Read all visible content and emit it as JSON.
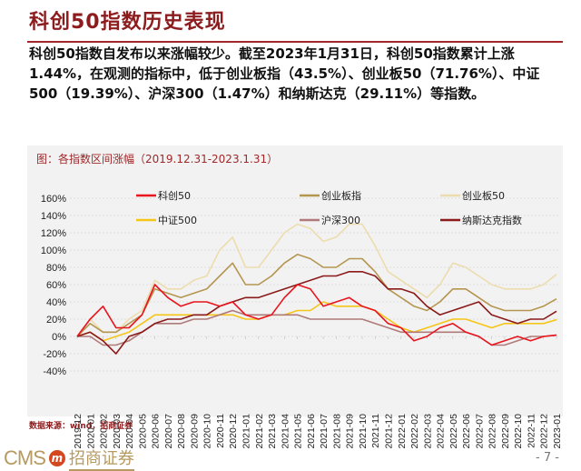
{
  "header": {
    "title": "科创50指数历史表现"
  },
  "body_text": "科创50指数自发布以来涨幅较少。截至2023年1月31日，科创50指数累计上涨1.44%，在观测的指标中，低于创业板指（43.5%）、创业板50（71.76%）、中证500（19.39%）、沪深300（1.47%）和纳斯达克（29.11%）等指数。",
  "chart_data": {
    "type": "line",
    "title": "图：各指数区间涨幅（2019.12.31-2023.1.31）",
    "x": [
      "2019-12",
      "2020-01",
      "2020-02",
      "2020-03",
      "2020-04",
      "2020-05",
      "2020-06",
      "2020-07",
      "2020-08",
      "2020-09",
      "2020-10",
      "2020-11",
      "2020-12",
      "2021-01",
      "2021-02",
      "2021-03",
      "2021-04",
      "2021-05",
      "2021-06",
      "2021-07",
      "2021-08",
      "2021-09",
      "2021-10",
      "2021-11",
      "2021-12",
      "2022-01",
      "2022-02",
      "2022-03",
      "2022-04",
      "2022-05",
      "2022-06",
      "2022-07",
      "2022-08",
      "2022-09",
      "2022-10",
      "2022-11",
      "2022-12",
      "2023-01"
    ],
    "yticks": [
      "160%",
      "140%",
      "120%",
      "100%",
      "80%",
      "60%",
      "40%",
      "20%",
      "0%",
      "-20%",
      "-40%"
    ],
    "ylim": [
      -40,
      160
    ],
    "grid": true,
    "legend_placement": "top",
    "series": [
      {
        "name": "科创50",
        "color": "#e8141e",
        "values": [
          0,
          20,
          35,
          10,
          10,
          25,
          60,
          45,
          35,
          40,
          40,
          35,
          40,
          25,
          20,
          25,
          45,
          60,
          55,
          35,
          40,
          45,
          35,
          30,
          15,
          10,
          -5,
          0,
          10,
          15,
          5,
          0,
          -10,
          -5,
          0,
          -5,
          0,
          1.44
        ]
      },
      {
        "name": "创业板指",
        "color": "#b49650",
        "values": [
          0,
          15,
          5,
          5,
          15,
          25,
          55,
          50,
          45,
          50,
          55,
          70,
          85,
          60,
          60,
          70,
          85,
          95,
          90,
          80,
          80,
          90,
          90,
          75,
          55,
          45,
          35,
          30,
          40,
          55,
          55,
          45,
          35,
          30,
          30,
          30,
          35,
          43.5
        ]
      },
      {
        "name": "创业板50",
        "color": "#ecdcae",
        "values": [
          0,
          20,
          5,
          5,
          20,
          30,
          65,
          55,
          55,
          65,
          70,
          100,
          115,
          80,
          80,
          100,
          120,
          130,
          125,
          110,
          115,
          130,
          130,
          105,
          75,
          65,
          55,
          45,
          60,
          85,
          80,
          70,
          60,
          55,
          55,
          55,
          60,
          71.76
        ]
      },
      {
        "name": "中证500",
        "color": "#f5c518",
        "values": [
          0,
          5,
          -5,
          0,
          5,
          15,
          25,
          25,
          25,
          25,
          25,
          25,
          25,
          20,
          20,
          25,
          25,
          30,
          30,
          40,
          35,
          35,
          35,
          30,
          20,
          10,
          5,
          10,
          15,
          20,
          20,
          15,
          10,
          15,
          15,
          15,
          15,
          19.39
        ]
      },
      {
        "name": "沪深300",
        "color": "#b07a7a",
        "values": [
          0,
          0,
          -10,
          -10,
          -5,
          5,
          15,
          15,
          15,
          20,
          20,
          25,
          30,
          25,
          25,
          25,
          25,
          25,
          20,
          20,
          20,
          20,
          20,
          15,
          10,
          5,
          5,
          5,
          5,
          5,
          5,
          0,
          -10,
          -10,
          -5,
          0,
          0,
          1.47
        ]
      },
      {
        "name": "纳斯达克指数",
        "color": "#8b1a1a",
        "values": [
          0,
          5,
          -5,
          -20,
          0,
          5,
          15,
          20,
          20,
          25,
          25,
          35,
          40,
          45,
          45,
          50,
          55,
          60,
          65,
          70,
          70,
          75,
          75,
          70,
          55,
          55,
          50,
          35,
          25,
          30,
          35,
          40,
          25,
          20,
          15,
          20,
          20,
          29.11
        ]
      }
    ]
  },
  "source": "数据来源：wind，招商证券",
  "footer": {
    "logo_text": "CMS",
    "logo_badge": "m",
    "logo_cn": "招商证券",
    "page": "- 7 -"
  }
}
